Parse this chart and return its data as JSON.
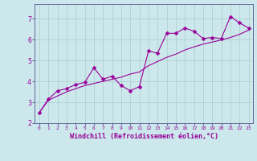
{
  "xlabel": "Windchill (Refroidissement éolien,°C)",
  "bg_color": "#cce8ec",
  "line_color": "#990099",
  "grid_color": "#aacccc",
  "spine_color": "#666699",
  "xlim": [
    -0.5,
    23.5
  ],
  "ylim": [
    2.0,
    7.7
  ],
  "xticks": [
    0,
    1,
    2,
    3,
    4,
    5,
    6,
    7,
    8,
    9,
    10,
    11,
    12,
    13,
    14,
    15,
    16,
    17,
    18,
    19,
    20,
    21,
    22,
    23
  ],
  "yticks": [
    2,
    3,
    4,
    5,
    6,
    7
  ],
  "series1_x": [
    0,
    1,
    2,
    3,
    4,
    5,
    6,
    7,
    8,
    9,
    10,
    11,
    12,
    13,
    14,
    15,
    16,
    17,
    18,
    19,
    20,
    21,
    22,
    23
  ],
  "series1_y": [
    2.5,
    3.15,
    3.55,
    3.65,
    3.85,
    3.95,
    4.65,
    4.1,
    4.25,
    3.8,
    3.55,
    3.75,
    5.45,
    5.35,
    6.3,
    6.3,
    6.55,
    6.4,
    6.05,
    6.1,
    6.05,
    7.1,
    6.8,
    6.55
  ],
  "series2_x": [
    0,
    1,
    2,
    3,
    4,
    5,
    6,
    7,
    8,
    9,
    10,
    11,
    12,
    13,
    14,
    15,
    16,
    17,
    18,
    19,
    20,
    21,
    22,
    23
  ],
  "series2_y": [
    2.5,
    3.1,
    3.3,
    3.5,
    3.65,
    3.8,
    3.9,
    4.0,
    4.1,
    4.2,
    4.35,
    4.45,
    4.75,
    4.95,
    5.15,
    5.3,
    5.5,
    5.65,
    5.78,
    5.88,
    5.98,
    6.1,
    6.25,
    6.45
  ]
}
